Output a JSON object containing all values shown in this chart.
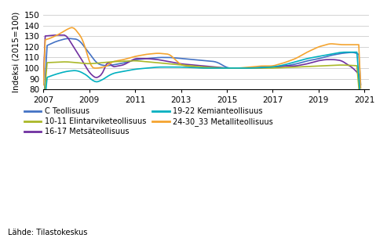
{
  "ylabel": "Indeksi (2015=100)",
  "ylim": [
    80,
    150
  ],
  "yticks": [
    80,
    90,
    100,
    110,
    120,
    130,
    140,
    150
  ],
  "xlim": [
    2007.0,
    2021.2
  ],
  "xticks": [
    2007,
    2009,
    2011,
    2013,
    2015,
    2017,
    2019,
    2021
  ],
  "xticklabels": [
    "2007",
    "2009",
    "2011",
    "2013",
    "2015",
    "2017",
    "2019",
    "2021"
  ],
  "source_text": "Lähde: Tilastokeskus",
  "background_color": "#ffffff",
  "grid_color": "#cccccc",
  "series": {
    "C_Teollisuus": {
      "color": "#4472c4",
      "label": "C Teollisuus",
      "linewidth": 1.2
    },
    "Metsateollisuus": {
      "color": "#7030a0",
      "label": "16-17 Metsäteollisuus",
      "linewidth": 1.2
    },
    "Metalliteollisuus": {
      "color": "#f4a430",
      "label": "24-30_33 Metalliteollisuus",
      "linewidth": 1.2
    },
    "Elintarviketeollisuus": {
      "color": "#aab828",
      "label": "10-11 Elintarviketeollisuus",
      "linewidth": 1.2
    },
    "Kemianteollisuus": {
      "color": "#00b0c0",
      "label": "19-22 Kemianteollisuus",
      "linewidth": 1.2
    }
  }
}
